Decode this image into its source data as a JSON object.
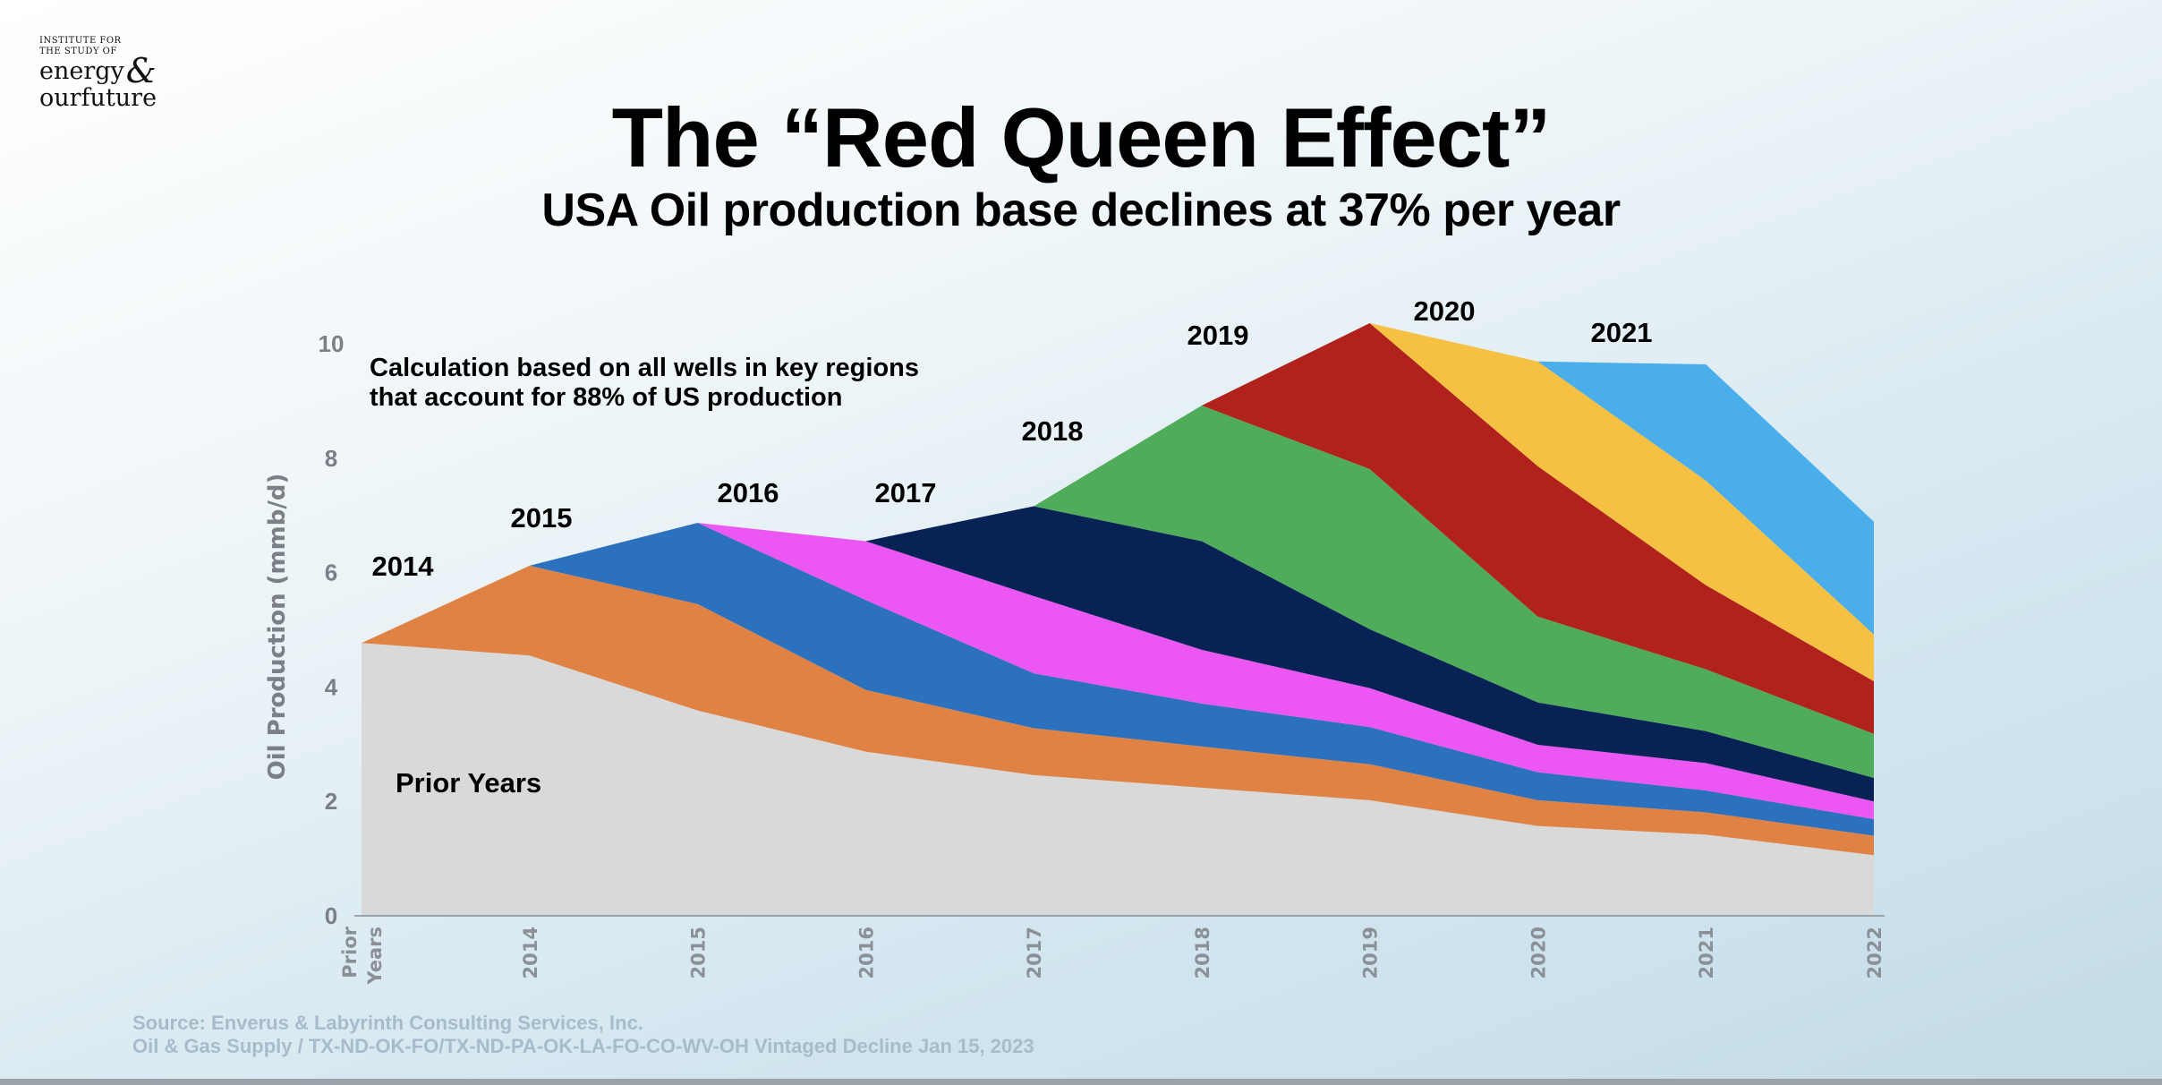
{
  "logo": {
    "line1": "INSTITUTE FOR",
    "line2": "THE STUDY OF",
    "line3": "energy",
    "line4": "our",
    "line5": "future",
    "amp": "&"
  },
  "title": "The “Red Queen Effect”",
  "subtitle": "USA Oil production base declines at 37% per year",
  "source": {
    "line1": "Source: Enverus & Labyrinth Consulting Services, Inc.",
    "line2": "Oil & Gas Supply / TX-ND-OK-FO/TX-ND-PA-OK-LA-FO-CO-WV-OH Vintaged Decline Jan 15, 2023"
  },
  "chart_data": {
    "type": "area",
    "stacked": true,
    "title": "The “Red Queen Effect”",
    "ylabel": "Oil Production (mmb/d)",
    "xlabel": "",
    "ylim": [
      0,
      10
    ],
    "yticks": [
      "0",
      "2",
      "4",
      "6",
      "8",
      "10"
    ],
    "categories": [
      "Prior Years",
      "2014",
      "2015",
      "2016",
      "2017",
      "2018",
      "2019",
      "2020",
      "2021",
      "2022"
    ],
    "annotation": [
      "Calculation based on all wells in key regions",
      "that account for 88% of US production"
    ],
    "grid": false,
    "series": [
      {
        "name": "Prior Years",
        "color": "#D9D9D9",
        "values": [
          4.77,
          4.55,
          3.59,
          2.87,
          2.46,
          2.24,
          2.02,
          1.57,
          1.42,
          1.06
        ]
      },
      {
        "name": "2014",
        "color": "#E08244",
        "values": [
          0,
          1.57,
          1.86,
          1.08,
          0.82,
          0.72,
          0.63,
          0.45,
          0.39,
          0.34
        ]
      },
      {
        "name": "2015",
        "color": "#2C71BE",
        "values": [
          null,
          0,
          1.42,
          1.57,
          0.96,
          0.75,
          0.65,
          0.49,
          0.38,
          0.29
        ]
      },
      {
        "name": "2016",
        "color": "#EC56F2",
        "values": [
          null,
          null,
          0,
          1.03,
          1.35,
          0.94,
          0.68,
          0.48,
          0.48,
          0.31
        ]
      },
      {
        "name": "2017",
        "color": "#082255",
        "values": [
          null,
          null,
          null,
          0,
          1.57,
          1.9,
          1.03,
          0.74,
          0.56,
          0.41
        ]
      },
      {
        "name": "2018",
        "color": "#4FAC5B",
        "values": [
          null,
          null,
          null,
          null,
          0,
          2.37,
          2.8,
          1.5,
          1.08,
          0.77
        ]
      },
      {
        "name": "2019",
        "color": "#B0221B",
        "values": [
          null,
          null,
          null,
          null,
          null,
          0,
          2.55,
          2.63,
          1.47,
          0.92
        ]
      },
      {
        "name": "2020",
        "color": "#F6C143",
        "values": [
          null,
          null,
          null,
          null,
          null,
          null,
          0,
          1.83,
          1.83,
          0.82
        ]
      },
      {
        "name": "2021",
        "color": "#4AAEEB",
        "values": [
          null,
          null,
          null,
          null,
          null,
          null,
          null,
          0,
          2.03,
          1.97
        ]
      }
    ]
  }
}
